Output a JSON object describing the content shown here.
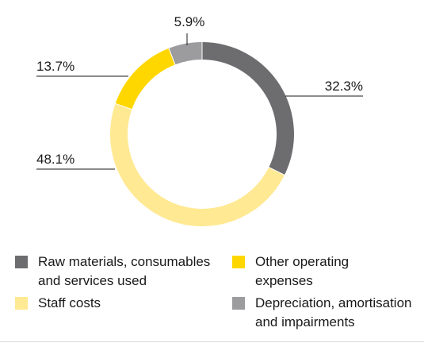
{
  "chart_data": {
    "type": "pie",
    "variant": "donut",
    "slices": [
      {
        "label": "Raw materials, consumables\nand services used",
        "value": 32.3,
        "value_label": "32.3%",
        "color": "#6d6d70"
      },
      {
        "label": "Staff costs",
        "value": 48.1,
        "value_label": "48.1%",
        "color": "#ffe993"
      },
      {
        "label": "Other operating\nexpenses",
        "value": 13.7,
        "value_label": "13.7%",
        "color": "#ffd700"
      },
      {
        "label": "Depreciation, amortisation\nand impairments",
        "value": 5.9,
        "value_label": "5.9%",
        "color": "#9c9c9f"
      }
    ],
    "start_angle_deg": 0,
    "direction": "clockwise",
    "legend_position": "bottom"
  }
}
